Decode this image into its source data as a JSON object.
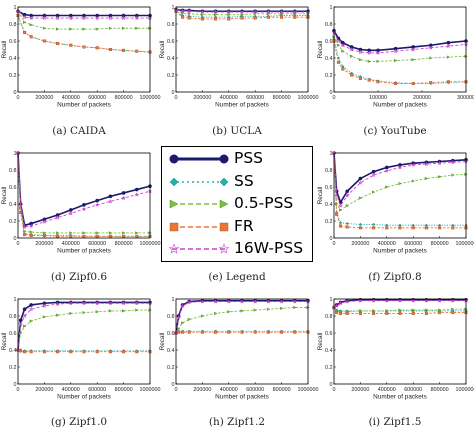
{
  "legend": {
    "entries": [
      {
        "label": "PSS",
        "color": "#1a1a6e",
        "style": "line-circle"
      },
      {
        "label": "SS",
        "color": "#20b2aa",
        "style": "dotted-diamond"
      },
      {
        "label": "0.5-PSS",
        "color": "#7cc242",
        "style": "dashed-triangle"
      },
      {
        "label": "FR",
        "color": "#e8763a",
        "style": "dashed-square"
      },
      {
        "label": "16W-PSS",
        "color": "#cc44cc",
        "style": "dashed-star"
      }
    ]
  },
  "captions": [
    "(a) CAIDA",
    "(b) UCLA",
    "(c) YouTube",
    "(d) Zipf0.6",
    "(e) Legend",
    "(f) Zipf0.8",
    "(g) Zipf1.0",
    "(h) Zipf1.2",
    "(i) Zipf1.5"
  ],
  "chart_data": [
    {
      "type": "line",
      "id": "caida",
      "xlabel": "Number of packets",
      "ylabel": "Recall",
      "xlim": [
        0,
        1000000
      ],
      "ylim": [
        0,
        1.0
      ],
      "xticks": [
        "0",
        "200000",
        "400000",
        "600000",
        "800000",
        "1000000"
      ],
      "yticks": [
        "0",
        "0.2",
        "0.4",
        "0.6",
        "0.8",
        "1"
      ],
      "x": [
        0,
        50000,
        100000,
        200000,
        300000,
        400000,
        500000,
        600000,
        700000,
        800000,
        900000,
        1000000
      ],
      "series": [
        {
          "name": "PSS",
          "values": [
            0.95,
            0.91,
            0.9,
            0.9,
            0.9,
            0.9,
            0.9,
            0.9,
            0.9,
            0.9,
            0.9,
            0.9
          ]
        },
        {
          "name": "SS",
          "values": [
            0.9,
            0.7,
            0.65,
            0.6,
            0.57,
            0.55,
            0.53,
            0.52,
            0.5,
            0.49,
            0.48,
            0.47
          ]
        },
        {
          "name": "0.5-PSS",
          "values": [
            0.95,
            0.82,
            0.79,
            0.75,
            0.74,
            0.74,
            0.74,
            0.74,
            0.75,
            0.75,
            0.75,
            0.75
          ]
        },
        {
          "name": "FR",
          "values": [
            0.9,
            0.7,
            0.65,
            0.6,
            0.57,
            0.55,
            0.53,
            0.52,
            0.5,
            0.49,
            0.48,
            0.47
          ]
        },
        {
          "name": "16W-PSS",
          "values": [
            0.95,
            0.88,
            0.87,
            0.87,
            0.87,
            0.87,
            0.87,
            0.87,
            0.87,
            0.87,
            0.87,
            0.87
          ]
        }
      ]
    },
    {
      "type": "line",
      "id": "ucla",
      "xlabel": "Number of packets",
      "ylabel": "Recall",
      "xlim": [
        0,
        1000000
      ],
      "ylim": [
        0,
        1.0
      ],
      "xticks": [
        "0",
        "200000",
        "400000",
        "600000",
        "800000",
        "1000000"
      ],
      "yticks": [
        "0",
        "0.2",
        "0.4",
        "0.6",
        "0.8",
        "1"
      ],
      "x": [
        0,
        50000,
        100000,
        200000,
        300000,
        400000,
        500000,
        600000,
        700000,
        800000,
        900000,
        1000000
      ],
      "series": [
        {
          "name": "PSS",
          "values": [
            0.97,
            0.96,
            0.96,
            0.95,
            0.95,
            0.95,
            0.95,
            0.95,
            0.95,
            0.95,
            0.95,
            0.95
          ]
        },
        {
          "name": "SS",
          "values": [
            0.95,
            0.9,
            0.89,
            0.88,
            0.88,
            0.88,
            0.89,
            0.89,
            0.89,
            0.9,
            0.9,
            0.9
          ]
        },
        {
          "name": "0.5-PSS",
          "values": [
            0.96,
            0.93,
            0.92,
            0.91,
            0.91,
            0.91,
            0.91,
            0.92,
            0.92,
            0.92,
            0.92,
            0.92
          ]
        },
        {
          "name": "FR",
          "values": [
            0.95,
            0.88,
            0.87,
            0.86,
            0.86,
            0.86,
            0.87,
            0.87,
            0.88,
            0.88,
            0.88,
            0.88
          ]
        },
        {
          "name": "16W-PSS",
          "values": [
            0.97,
            0.95,
            0.95,
            0.94,
            0.94,
            0.94,
            0.94,
            0.94,
            0.94,
            0.94,
            0.94,
            0.94
          ]
        }
      ]
    },
    {
      "type": "line",
      "id": "youtube",
      "xlabel": "Number of packets",
      "ylabel": "Recall",
      "xlim": [
        0,
        300000
      ],
      "ylim": [
        0,
        1.0
      ],
      "xticks": [
        "0",
        "100000",
        "200000",
        "300000"
      ],
      "yticks": [
        "0",
        "0.2",
        "0.4",
        "0.6",
        "0.8",
        "1"
      ],
      "x": [
        0,
        10000,
        20000,
        40000,
        60000,
        80000,
        100000,
        140000,
        180000,
        220000,
        260000,
        300000
      ],
      "series": [
        {
          "name": "PSS",
          "values": [
            0.72,
            0.63,
            0.58,
            0.53,
            0.5,
            0.49,
            0.49,
            0.51,
            0.53,
            0.55,
            0.58,
            0.6
          ]
        },
        {
          "name": "SS",
          "values": [
            0.62,
            0.4,
            0.3,
            0.22,
            0.18,
            0.15,
            0.13,
            0.11,
            0.1,
            0.1,
            0.11,
            0.12
          ]
        },
        {
          "name": "0.5-PSS",
          "values": [
            0.65,
            0.55,
            0.48,
            0.42,
            0.38,
            0.36,
            0.36,
            0.37,
            0.38,
            0.4,
            0.41,
            0.42
          ]
        },
        {
          "name": "FR",
          "values": [
            0.6,
            0.35,
            0.27,
            0.2,
            0.16,
            0.14,
            0.12,
            0.1,
            0.1,
            0.11,
            0.12,
            0.12
          ]
        },
        {
          "name": "16W-PSS",
          "values": [
            0.7,
            0.6,
            0.55,
            0.5,
            0.47,
            0.46,
            0.46,
            0.48,
            0.5,
            0.52,
            0.54,
            0.56
          ]
        }
      ]
    },
    {
      "type": "line",
      "id": "zipf06",
      "xlabel": "Number of packets",
      "ylabel": "Recall",
      "xlim": [
        0,
        1000000
      ],
      "ylim": [
        0,
        1.0
      ],
      "xticks": [
        "0",
        "200000",
        "400000",
        "600000",
        "800000",
        "1000000"
      ],
      "yticks": [
        "0",
        "0.2",
        "0.4",
        "0.6",
        "0.8",
        "1"
      ],
      "x": [
        0,
        20000,
        50000,
        100000,
        200000,
        300000,
        400000,
        500000,
        600000,
        700000,
        800000,
        900000,
        1000000
      ],
      "series": [
        {
          "name": "PSS",
          "values": [
            1.0,
            0.4,
            0.15,
            0.17,
            0.22,
            0.27,
            0.33,
            0.39,
            0.44,
            0.49,
            0.53,
            0.57,
            0.61
          ]
        },
        {
          "name": "SS",
          "values": [
            1.0,
            0.3,
            0.05,
            0.04,
            0.03,
            0.03,
            0.03,
            0.02,
            0.02,
            0.02,
            0.02,
            0.02,
            0.02
          ]
        },
        {
          "name": "0.5-PSS",
          "values": [
            1.0,
            0.35,
            0.08,
            0.07,
            0.06,
            0.06,
            0.06,
            0.06,
            0.06,
            0.06,
            0.06,
            0.06,
            0.06
          ]
        },
        {
          "name": "FR",
          "values": [
            1.0,
            0.3,
            0.04,
            0.03,
            0.03,
            0.02,
            0.02,
            0.02,
            0.02,
            0.02,
            0.02,
            0.02,
            0.02
          ]
        },
        {
          "name": "16W-PSS",
          "values": [
            1.0,
            0.38,
            0.13,
            0.14,
            0.19,
            0.24,
            0.29,
            0.34,
            0.39,
            0.43,
            0.47,
            0.51,
            0.55
          ]
        }
      ]
    },
    {
      "type": "line",
      "id": "zipf08",
      "xlabel": "Number of packets",
      "ylabel": "Recall",
      "xlim": [
        0,
        1000000
      ],
      "ylim": [
        0,
        1.0
      ],
      "xticks": [
        "0",
        "200000",
        "400000",
        "600000",
        "800000",
        "1000000"
      ],
      "yticks": [
        "0",
        "0.2",
        "0.4",
        "0.6",
        "0.8",
        "1"
      ],
      "x": [
        0,
        20000,
        50000,
        100000,
        200000,
        300000,
        400000,
        500000,
        600000,
        700000,
        800000,
        900000,
        1000000
      ],
      "series": [
        {
          "name": "PSS",
          "values": [
            1.0,
            0.55,
            0.42,
            0.55,
            0.7,
            0.78,
            0.83,
            0.86,
            0.88,
            0.89,
            0.9,
            0.91,
            0.92
          ]
        },
        {
          "name": "SS",
          "values": [
            1.0,
            0.3,
            0.18,
            0.17,
            0.16,
            0.16,
            0.15,
            0.15,
            0.15,
            0.15,
            0.15,
            0.15,
            0.15
          ]
        },
        {
          "name": "0.5-PSS",
          "values": [
            1.0,
            0.4,
            0.33,
            0.38,
            0.47,
            0.54,
            0.6,
            0.64,
            0.67,
            0.7,
            0.72,
            0.74,
            0.75
          ]
        },
        {
          "name": "FR",
          "values": [
            1.0,
            0.28,
            0.14,
            0.13,
            0.12,
            0.12,
            0.12,
            0.12,
            0.12,
            0.12,
            0.12,
            0.12,
            0.12
          ]
        },
        {
          "name": "16W-PSS",
          "values": [
            1.0,
            0.5,
            0.38,
            0.5,
            0.65,
            0.74,
            0.79,
            0.83,
            0.86,
            0.87,
            0.88,
            0.89,
            0.9
          ]
        }
      ]
    },
    {
      "type": "line",
      "id": "zipf10",
      "xlabel": "Number of packets",
      "ylabel": "Recall",
      "xlim": [
        0,
        1000000
      ],
      "ylim": [
        0,
        1.0
      ],
      "xticks": [
        "0",
        "200000",
        "400000",
        "600000",
        "800000",
        "1000000"
      ],
      "yticks": [
        "0",
        "0.2",
        "0.4",
        "0.6",
        "0.8",
        "1"
      ],
      "x": [
        0,
        20000,
        50000,
        100000,
        200000,
        300000,
        400000,
        500000,
        600000,
        700000,
        800000,
        900000,
        1000000
      ],
      "series": [
        {
          "name": "PSS",
          "values": [
            0.4,
            0.75,
            0.88,
            0.93,
            0.95,
            0.96,
            0.96,
            0.96,
            0.96,
            0.96,
            0.96,
            0.96,
            0.96
          ]
        },
        {
          "name": "SS",
          "values": [
            0.4,
            0.4,
            0.39,
            0.39,
            0.39,
            0.39,
            0.39,
            0.39,
            0.39,
            0.39,
            0.39,
            0.39,
            0.39
          ]
        },
        {
          "name": "0.5-PSS",
          "values": [
            0.4,
            0.6,
            0.68,
            0.74,
            0.79,
            0.81,
            0.83,
            0.84,
            0.85,
            0.86,
            0.86,
            0.87,
            0.87
          ]
        },
        {
          "name": "FR",
          "values": [
            0.4,
            0.39,
            0.38,
            0.38,
            0.38,
            0.38,
            0.38,
            0.38,
            0.38,
            0.38,
            0.38,
            0.38,
            0.38
          ]
        },
        {
          "name": "16W-PSS",
          "values": [
            0.4,
            0.7,
            0.8,
            0.88,
            0.92,
            0.94,
            0.95,
            0.95,
            0.95,
            0.95,
            0.95,
            0.95,
            0.95
          ]
        }
      ]
    },
    {
      "type": "line",
      "id": "zipf12",
      "xlabel": "Number of packets",
      "ylabel": "Recall",
      "xlim": [
        0,
        1000000
      ],
      "ylim": [
        0,
        1.0
      ],
      "xticks": [
        "0",
        "200000",
        "400000",
        "600000",
        "800000",
        "1000000"
      ],
      "yticks": [
        "0",
        "0.2",
        "0.4",
        "0.6",
        "0.8",
        "1"
      ],
      "x": [
        0,
        20000,
        50000,
        100000,
        200000,
        300000,
        400000,
        500000,
        600000,
        700000,
        800000,
        900000,
        1000000
      ],
      "series": [
        {
          "name": "PSS",
          "values": [
            0.6,
            0.8,
            0.93,
            0.97,
            0.98,
            0.98,
            0.98,
            0.98,
            0.98,
            0.98,
            0.98,
            0.98,
            0.98
          ]
        },
        {
          "name": "SS",
          "values": [
            0.6,
            0.62,
            0.62,
            0.62,
            0.62,
            0.62,
            0.62,
            0.62,
            0.62,
            0.62,
            0.62,
            0.62,
            0.62
          ]
        },
        {
          "name": "0.5-PSS",
          "values": [
            0.6,
            0.65,
            0.72,
            0.76,
            0.8,
            0.83,
            0.85,
            0.86,
            0.87,
            0.88,
            0.89,
            0.9,
            0.9
          ]
        },
        {
          "name": "FR",
          "values": [
            0.6,
            0.61,
            0.61,
            0.61,
            0.61,
            0.61,
            0.61,
            0.61,
            0.61,
            0.61,
            0.61,
            0.61,
            0.61
          ]
        },
        {
          "name": "16W-PSS",
          "values": [
            0.6,
            0.78,
            0.92,
            0.96,
            0.97,
            0.97,
            0.97,
            0.97,
            0.97,
            0.97,
            0.97,
            0.97,
            0.97
          ]
        }
      ]
    },
    {
      "type": "line",
      "id": "zipf15",
      "xlabel": "Number of packets",
      "ylabel": "Recall",
      "xlim": [
        0,
        1000000
      ],
      "ylim": [
        0,
        1.0
      ],
      "xticks": [
        "0",
        "200000",
        "400000",
        "600000",
        "800000",
        "1000000"
      ],
      "yticks": [
        "0",
        "0.2",
        "0.4",
        "0.6",
        "0.8",
        "1"
      ],
      "x": [
        0,
        20000,
        50000,
        100000,
        200000,
        300000,
        400000,
        500000,
        600000,
        700000,
        800000,
        900000,
        1000000
      ],
      "series": [
        {
          "name": "PSS",
          "values": [
            0.9,
            0.93,
            0.96,
            0.98,
            0.99,
            0.99,
            0.99,
            0.99,
            0.99,
            0.99,
            0.99,
            0.99,
            0.99
          ]
        },
        {
          "name": "SS",
          "values": [
            0.9,
            0.87,
            0.86,
            0.86,
            0.86,
            0.86,
            0.86,
            0.86,
            0.86,
            0.86,
            0.86,
            0.86,
            0.86
          ]
        },
        {
          "name": "0.5-PSS",
          "values": [
            0.9,
            0.86,
            0.85,
            0.85,
            0.86,
            0.86,
            0.86,
            0.87,
            0.87,
            0.87,
            0.87,
            0.88,
            0.88
          ]
        },
        {
          "name": "FR",
          "values": [
            0.9,
            0.84,
            0.83,
            0.83,
            0.83,
            0.83,
            0.83,
            0.83,
            0.83,
            0.83,
            0.84,
            0.84,
            0.84
          ]
        },
        {
          "name": "16W-PSS",
          "values": [
            0.9,
            0.92,
            0.95,
            0.97,
            0.98,
            0.98,
            0.98,
            0.98,
            0.98,
            0.98,
            0.98,
            0.98,
            0.98
          ]
        }
      ]
    }
  ]
}
